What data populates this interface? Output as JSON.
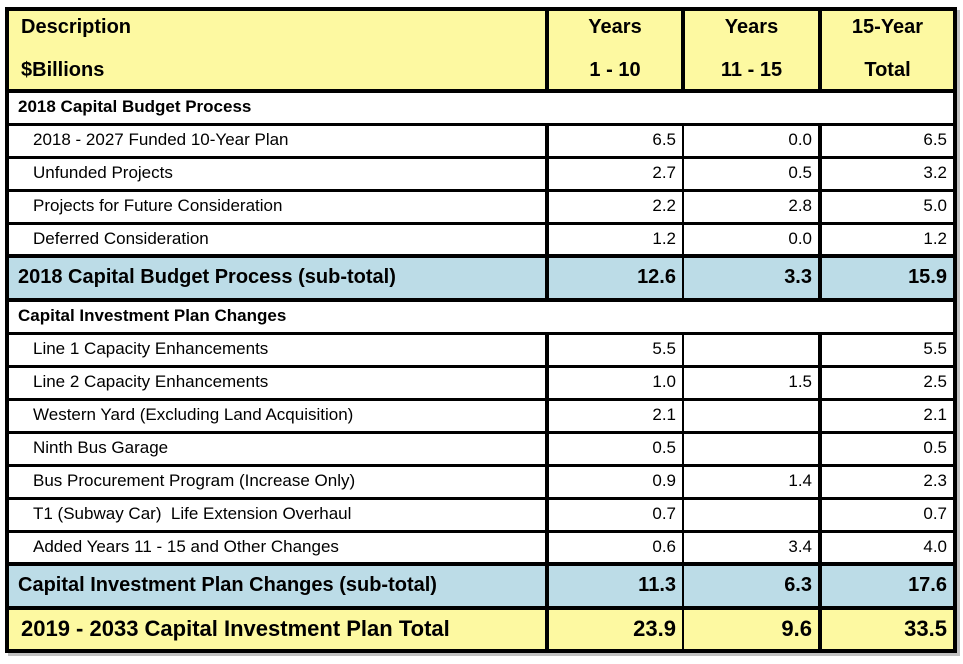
{
  "colors": {
    "header_bg": "#FDF9A1",
    "subtotal_bg": "#BCDCE7",
    "total_bg": "#FDF9A1",
    "border": "#000000"
  },
  "table": {
    "header": {
      "description_line1": "Description",
      "description_line2": "$Billions",
      "years_1_10_line1": "Years",
      "years_1_10_line2": "1 - 10",
      "years_11_15_line1": "Years",
      "years_11_15_line2": "11 - 15",
      "total_line1": "15-Year",
      "total_line2": "Total"
    },
    "rows": [
      {
        "type": "section",
        "label": "2018 Capital Budget Process"
      },
      {
        "type": "data",
        "label": "2018 - 2027 Funded 10-Year Plan",
        "values": [
          "6.5",
          "0.0",
          "6.5"
        ]
      },
      {
        "type": "data",
        "label": "Unfunded Projects",
        "values": [
          "2.7",
          "0.5",
          "3.2"
        ]
      },
      {
        "type": "data",
        "label": "Projects for Future Consideration",
        "values": [
          "2.2",
          "2.8",
          "5.0"
        ]
      },
      {
        "type": "data",
        "label": "Deferred Consideration",
        "values": [
          "1.2",
          "0.0",
          "1.2"
        ]
      },
      {
        "type": "subtotal",
        "label": "2018 Capital Budget Process (sub-total)",
        "values": [
          "12.6",
          "3.3",
          "15.9"
        ]
      },
      {
        "type": "section",
        "label": "Capital Investment Plan Changes"
      },
      {
        "type": "data",
        "label": "Line 1 Capacity Enhancements",
        "values": [
          "5.5",
          "",
          "5.5"
        ]
      },
      {
        "type": "data",
        "label": "Line 2 Capacity Enhancements",
        "values": [
          "1.0",
          "1.5",
          "2.5"
        ]
      },
      {
        "type": "data",
        "label": "Western Yard (Excluding Land Acquisition)",
        "values": [
          "2.1",
          "",
          "2.1"
        ]
      },
      {
        "type": "data",
        "label": "Ninth Bus Garage",
        "values": [
          "0.5",
          "",
          "0.5"
        ]
      },
      {
        "type": "data",
        "label": "Bus Procurement Program (Increase Only)",
        "values": [
          "0.9",
          "1.4",
          "2.3"
        ]
      },
      {
        "type": "data",
        "label": "T1 (Subway Car)  Life Extension Overhaul",
        "values": [
          "0.7",
          "",
          "0.7"
        ]
      },
      {
        "type": "data",
        "label": "Added Years 11 - 15 and Other Changes",
        "values": [
          "0.6",
          "3.4",
          "4.0"
        ]
      },
      {
        "type": "subtotal",
        "label": "Capital Investment Plan Changes (sub-total)",
        "values": [
          "11.3",
          "6.3",
          "17.6"
        ]
      },
      {
        "type": "total",
        "label": "2019 - 2033 Capital Investment Plan Total",
        "values": [
          "23.9",
          "9.6",
          "33.5"
        ]
      }
    ]
  },
  "chart_data": {
    "type": "table",
    "title": "Description $Billions",
    "columns": [
      "Description ($Billions)",
      "Years 1 - 10",
      "Years 11 - 15",
      "15-Year Total"
    ],
    "sections": [
      {
        "name": "2018 Capital Budget Process",
        "rows": [
          {
            "label": "2018 - 2027 Funded 10-Year Plan",
            "years_1_10": 6.5,
            "years_11_15": 0.0,
            "total_15_year": 6.5
          },
          {
            "label": "Unfunded Projects",
            "years_1_10": 2.7,
            "years_11_15": 0.5,
            "total_15_year": 3.2
          },
          {
            "label": "Projects for Future Consideration",
            "years_1_10": 2.2,
            "years_11_15": 2.8,
            "total_15_year": 5.0
          },
          {
            "label": "Deferred Consideration",
            "years_1_10": 1.2,
            "years_11_15": 0.0,
            "total_15_year": 1.2
          }
        ],
        "subtotal": {
          "label": "2018 Capital Budget Process (sub-total)",
          "years_1_10": 12.6,
          "years_11_15": 3.3,
          "total_15_year": 15.9
        }
      },
      {
        "name": "Capital Investment Plan Changes",
        "rows": [
          {
            "label": "Line 1 Capacity Enhancements",
            "years_1_10": 5.5,
            "years_11_15": null,
            "total_15_year": 5.5
          },
          {
            "label": "Line 2 Capacity Enhancements",
            "years_1_10": 1.0,
            "years_11_15": 1.5,
            "total_15_year": 2.5
          },
          {
            "label": "Western Yard (Excluding Land Acquisition)",
            "years_1_10": 2.1,
            "years_11_15": null,
            "total_15_year": 2.1
          },
          {
            "label": "Ninth Bus Garage",
            "years_1_10": 0.5,
            "years_11_15": null,
            "total_15_year": 0.5
          },
          {
            "label": "Bus Procurement Program (Increase Only)",
            "years_1_10": 0.9,
            "years_11_15": 1.4,
            "total_15_year": 2.3
          },
          {
            "label": "T1 (Subway Car) Life Extension Overhaul",
            "years_1_10": 0.7,
            "years_11_15": null,
            "total_15_year": 0.7
          },
          {
            "label": "Added Years 11 - 15 and Other Changes",
            "years_1_10": 0.6,
            "years_11_15": 3.4,
            "total_15_year": 4.0
          }
        ],
        "subtotal": {
          "label": "Capital Investment Plan Changes (sub-total)",
          "years_1_10": 11.3,
          "years_11_15": 6.3,
          "total_15_year": 17.6
        }
      }
    ],
    "grand_total": {
      "label": "2019 - 2033 Capital Investment Plan Total",
      "years_1_10": 23.9,
      "years_11_15": 9.6,
      "total_15_year": 33.5
    }
  }
}
